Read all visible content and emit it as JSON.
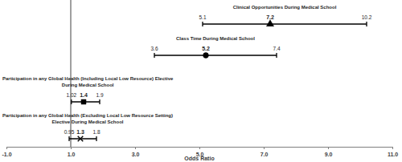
{
  "chart_data": {
    "type": "forest",
    "color": "#000000",
    "xlabel": "Odds Ratio",
    "xlim": [
      -1,
      11
    ],
    "xticks": [
      {
        "value": -1,
        "label": "-1.0"
      },
      {
        "value": 1,
        "label": "1.0"
      },
      {
        "value": 3,
        "label": "3.0"
      },
      {
        "value": 5,
        "label": "5.0"
      },
      {
        "value": 7,
        "label": "7.0"
      },
      {
        "value": 9,
        "label": "9.0"
      },
      {
        "value": 11,
        "label": "11.0"
      }
    ],
    "reference": 1,
    "data_labels": true,
    "series": [
      {
        "name": "Clinical Opportunities During Medical School",
        "marker": "triangle",
        "values": [
          7.2
        ],
        "lower": [
          5.1
        ],
        "upper": [
          10.2
        ]
      },
      {
        "name": "Class Time During Medical School",
        "marker": "circle",
        "values": [
          5.2
        ],
        "lower": [
          3.6
        ],
        "upper": [
          7.4
        ]
      },
      {
        "name": "Participation in any Global Health (Including Local Low Resource) Elective During Medical School",
        "marker": "square",
        "values": [
          1.4
        ],
        "lower": [
          1.02
        ],
        "upper": [
          1.9
        ]
      },
      {
        "name": "Participation in any Global Health (Excluding Local Low Resource Setting) Elective During Medical School",
        "marker": "x",
        "values": [
          1.3
        ],
        "lower": [
          0.95
        ],
        "upper": [
          1.8
        ]
      }
    ]
  }
}
